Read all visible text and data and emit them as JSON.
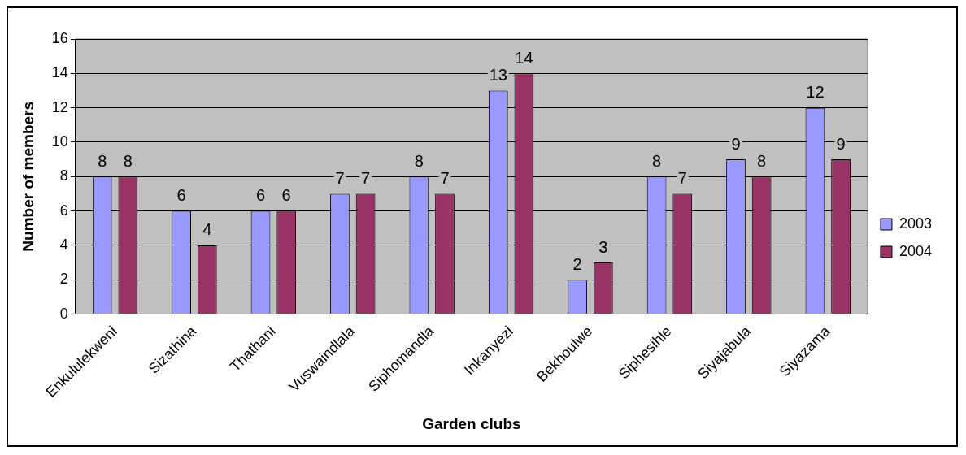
{
  "chart_data": {
    "type": "bar",
    "xlabel": "Garden clubs",
    "ylabel": "Number of members",
    "categories": [
      "Enkululekweni",
      "Sizathina",
      "Thathani",
      "Vuswaindlala",
      "Siphomandla",
      "Inkanyezi",
      "Bekhoulwe",
      "Siphesihle",
      "Siyajabula",
      "Siyazama"
    ],
    "series": [
      {
        "name": "2003",
        "color": "#9999ff",
        "values": [
          8,
          6,
          6,
          7,
          8,
          13,
          2,
          8,
          9,
          12
        ]
      },
      {
        "name": "2004",
        "color": "#993366",
        "values": [
          8,
          4,
          6,
          7,
          7,
          14,
          3,
          7,
          8,
          9
        ]
      }
    ],
    "ylim": [
      0,
      16
    ],
    "yticks": [
      0,
      2,
      4,
      6,
      8,
      10,
      12,
      14,
      16
    ],
    "grid": "y",
    "legend": "right",
    "data_labels": true
  }
}
